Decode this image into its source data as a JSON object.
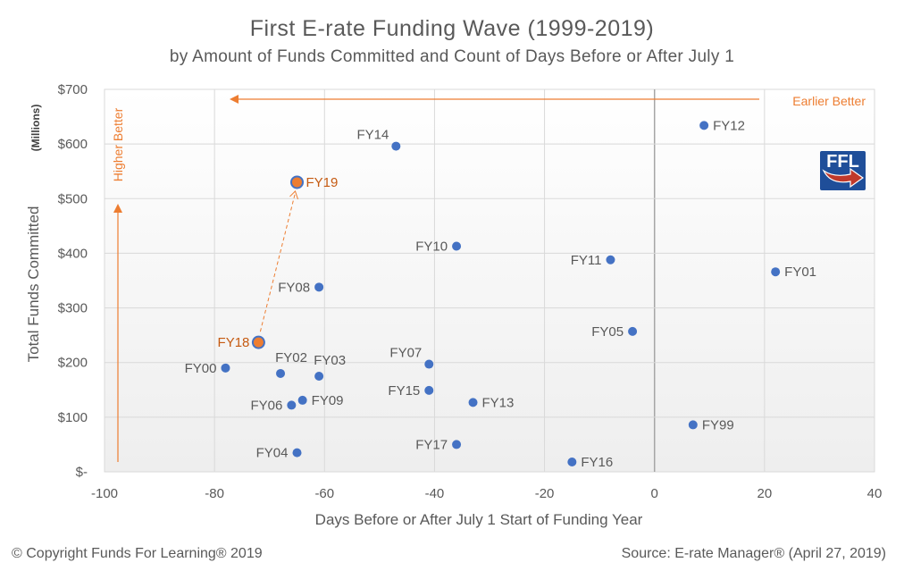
{
  "chart_data": {
    "type": "scatter",
    "title": "First E-rate Funding Wave  (1999-2019)",
    "subtitle": "by Amount of Funds Committed  and Count of Days Before or After July 1",
    "xlabel": "Days Before or After July 1 Start of Funding Year",
    "ylabel": "Total Funds Committed",
    "ylabel_units": "(Millions)",
    "xlim": [
      -100,
      40
    ],
    "ylim": [
      0,
      700
    ],
    "x_ticks": [
      "-100",
      "-80",
      "-60",
      "-40",
      "-20",
      "0",
      "20",
      "40"
    ],
    "y_ticks": [
      "$-",
      "$100",
      "$200",
      "$300",
      "$400",
      "$500",
      "$600",
      "$700"
    ],
    "grid": true,
    "points": [
      {
        "label": "FY99",
        "x": 7,
        "y": 86
      },
      {
        "label": "FY00",
        "x": -78,
        "y": 190
      },
      {
        "label": "FY01",
        "x": 22,
        "y": 366
      },
      {
        "label": "FY02",
        "x": -68,
        "y": 180
      },
      {
        "label": "FY03",
        "x": -61,
        "y": 175
      },
      {
        "label": "FY04",
        "x": -65,
        "y": 35
      },
      {
        "label": "FY05",
        "x": -4,
        "y": 257
      },
      {
        "label": "FY06",
        "x": -66,
        "y": 122
      },
      {
        "label": "FY07",
        "x": -41,
        "y": 197
      },
      {
        "label": "FY08",
        "x": -61,
        "y": 338
      },
      {
        "label": "FY09",
        "x": -64,
        "y": 131
      },
      {
        "label": "FY10",
        "x": -36,
        "y": 413
      },
      {
        "label": "FY11",
        "x": -8,
        "y": 388
      },
      {
        "label": "FY12",
        "x": 9,
        "y": 634
      },
      {
        "label": "FY13",
        "x": -33,
        "y": 127
      },
      {
        "label": "FY14",
        "x": -47,
        "y": 596
      },
      {
        "label": "FY15",
        "x": -41,
        "y": 149
      },
      {
        "label": "FY16",
        "x": -15,
        "y": 18
      },
      {
        "label": "FY17",
        "x": -36,
        "y": 50
      },
      {
        "label": "FY18",
        "x": -72,
        "y": 237,
        "highlight": true
      },
      {
        "label": "FY19",
        "x": -65,
        "y": 530,
        "highlight": true
      }
    ],
    "annotations": {
      "earlier_better": "Earlier Better",
      "higher_better": "Higher Better"
    },
    "colors": {
      "point": "#4472c4",
      "highlight_fill": "#ed7d31",
      "highlight_border": "#4472c4",
      "annotation": "#ed7d31",
      "grid": "#d9d9d9",
      "plot_bg_top": "#ffffff",
      "plot_bg_bottom": "#f0f0f0"
    }
  },
  "logo": {
    "text": "FFL"
  },
  "footer": {
    "copyright": "© Copyright Funds For Learning® 2019",
    "source": "Source: E-rate Manager® (April 27, 2019)"
  }
}
